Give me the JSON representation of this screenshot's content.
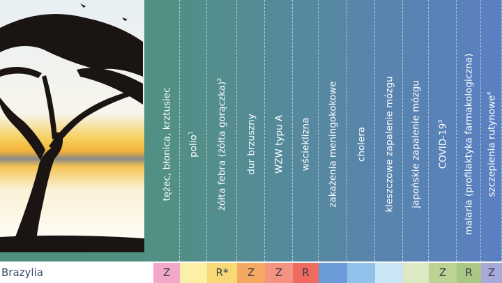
{
  "columns": [
    {
      "label": "tężec, błonica, krztusiec",
      "sup": "",
      "value": "Z",
      "color": "#f2a9c9"
    },
    {
      "label": "polio",
      "sup": "1",
      "value": "",
      "color": "#fcf0a6"
    },
    {
      "label": "żółta febra (żółta gorączka)",
      "sup": "2",
      "value": "R*",
      "color": "#f8d976"
    },
    {
      "label": "dur brzuszny",
      "sup": "",
      "value": "Z",
      "color": "#f5a862"
    },
    {
      "label": "WZW typu A",
      "sup": "",
      "value": "Z",
      "color": "#f49382"
    },
    {
      "label": "wścieklizna",
      "sup": "",
      "value": "R",
      "color": "#ef6b5f"
    },
    {
      "label": "zakażenia meningokokowe",
      "sup": "",
      "value": "",
      "color": "#6b9bd9"
    },
    {
      "label": "cholera",
      "sup": "",
      "value": "",
      "color": "#92c2ec"
    },
    {
      "label": "kleszczowe zapalenie mózgu",
      "sup": "",
      "value": "",
      "color": "#cae5f4"
    },
    {
      "label": "japońskie zapalenie mózgu",
      "sup": "",
      "value": "",
      "color": "#dde9c3"
    },
    {
      "label": "COVID-19",
      "sup": "3",
      "value": "Z",
      "color": "#bcd493"
    },
    {
      "label": "malaria (profilaktyka farmakologiczna)",
      "sup": "",
      "value": "R",
      "color": "#a9c883"
    },
    {
      "label": "szczepienia rutynowe",
      "sup": "4",
      "value": "Z",
      "color": "#a9a9d8"
    }
  ],
  "row": {
    "country": "Brazylia"
  }
}
